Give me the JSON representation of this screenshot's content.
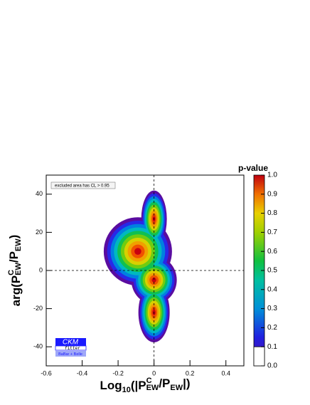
{
  "chart_data": {
    "type": "contour",
    "x_label": [
      "Log",
      "10",
      "(|P",
      "C",
      "EW",
      "/P",
      "EW",
      "|)"
    ],
    "y_label": [
      "arg(P",
      "C",
      "EW",
      "/P",
      "EW",
      ")"
    ],
    "xlim": [
      -0.6,
      0.5
    ],
    "xticks": [
      -0.6,
      -0.4,
      -0.2,
      0.0,
      0.2,
      0.4
    ],
    "ylim": [
      -50,
      50
    ],
    "yticks": [
      -40,
      -20,
      0,
      20,
      40
    ],
    "peaks": {
      "x": [
        -0.09,
        0.0,
        0.0,
        0.0
      ],
      "y": [
        10,
        27,
        -5,
        -22
      ],
      "values": [
        1.0,
        1.0,
        1.0,
        1.0
      ]
    },
    "colorbar": {
      "label": "p-value",
      "lim": [
        0.0,
        1.0
      ],
      "ticks": [
        0.0,
        0.1,
        0.2,
        0.3,
        0.4,
        0.5,
        0.6,
        0.7,
        0.8,
        0.9,
        1.0
      ]
    },
    "legend": "excluded area has CL > 0.95",
    "logo": {
      "name": "CKM",
      "sub": "fitter",
      "experiments": "BaBar + Belle"
    }
  }
}
